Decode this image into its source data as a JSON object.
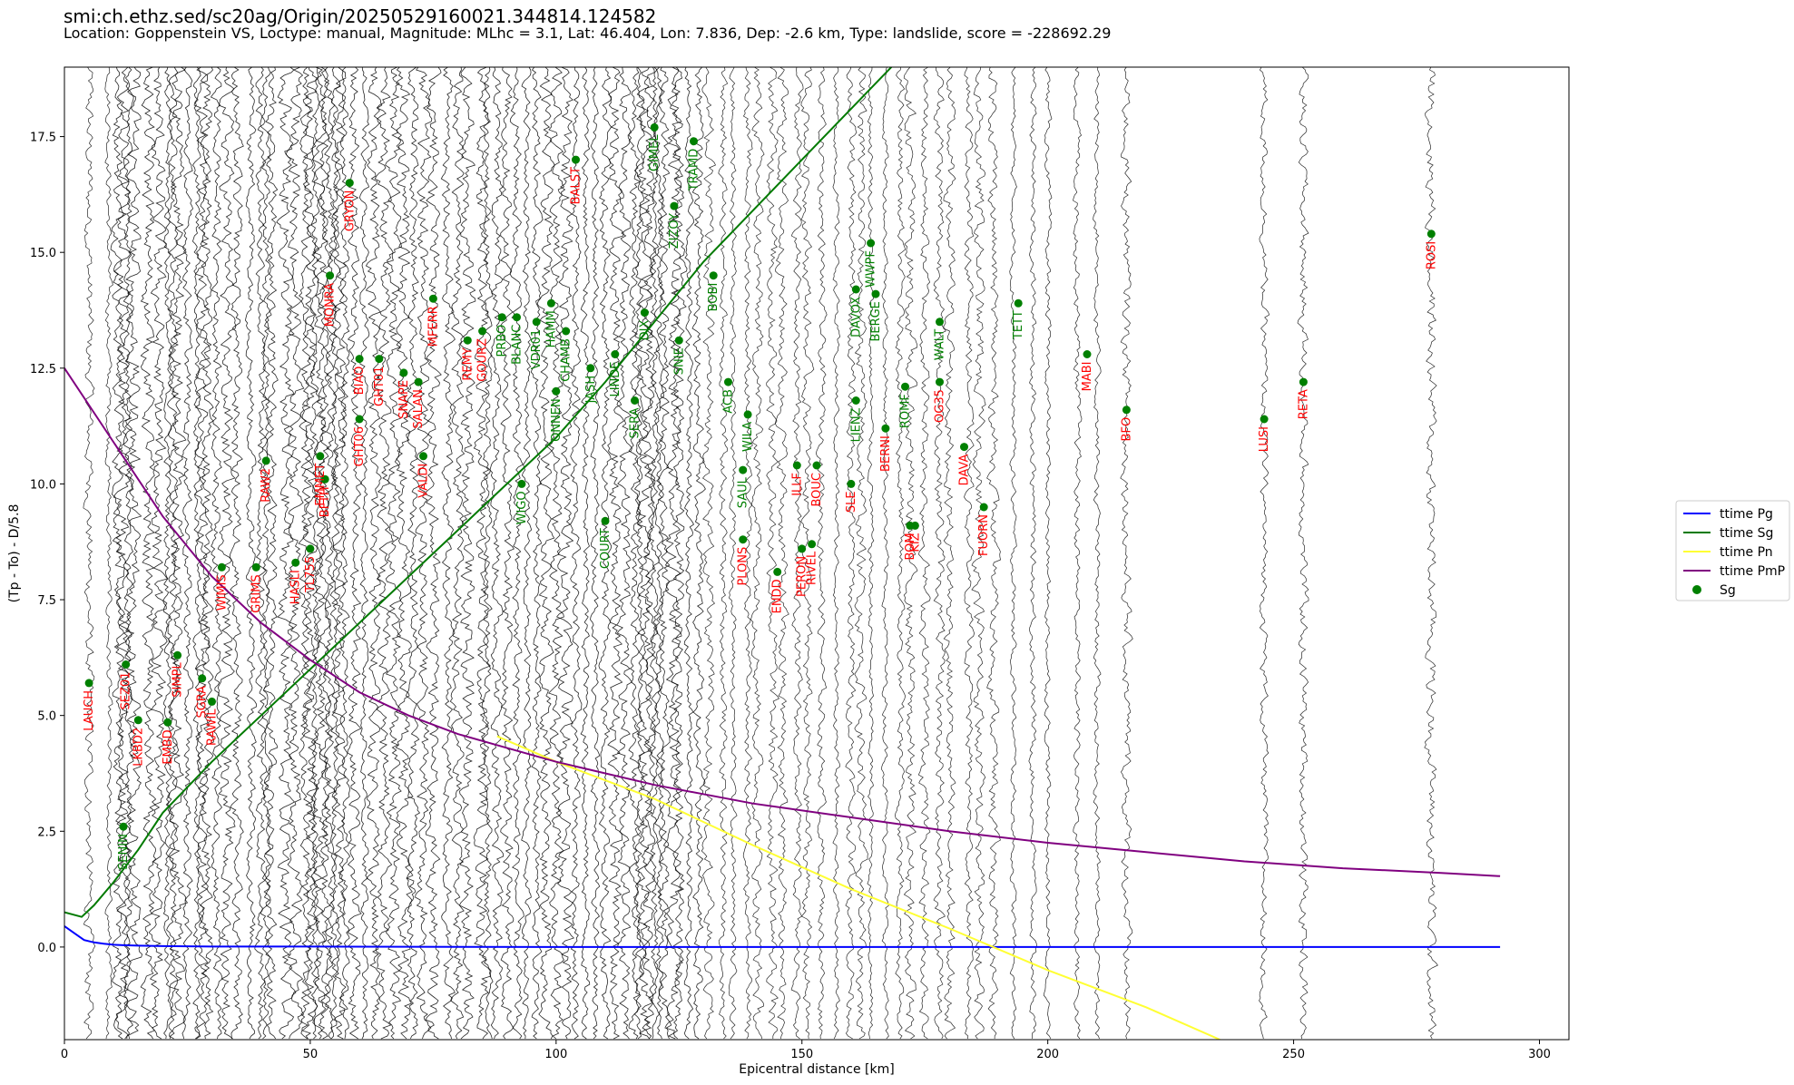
{
  "header": {
    "title": "smi:ch.ethz.sed/sc20ag/Origin/20250529160021.344814.124582",
    "subtitle": "Location: Goppenstein VS, Loctype: manual, Magnitude: MLhc = 3.1, Lat: 46.404, Lon: 7.836, Dep: -2.6 km, Type: landslide, score = -228692.29"
  },
  "chart_data": {
    "type": "line",
    "xlabel": "Epicentral distance [km]",
    "ylabel": "(Tp - To) - D/5.8",
    "xlim": [
      0,
      306
    ],
    "ylim": [
      -2,
      19
    ],
    "x_ticks": [
      0,
      50,
      100,
      150,
      200,
      250,
      300
    ],
    "y_ticks": [
      0.0,
      2.5,
      5.0,
      7.5,
      10.0,
      12.5,
      15.0,
      17.5
    ],
    "grid": false,
    "legend_position": "outside-right",
    "colors": {
      "pg": "#0000ff",
      "sg": "#007a00",
      "pn": "#ffff33",
      "pmp": "#800080",
      "sg_point": "#008000",
      "label_red": "#ff0000",
      "label_green": "#008000",
      "trace": "#000000"
    },
    "series": [
      {
        "name": "ttime Pg",
        "color": "#0000ff",
        "x": [
          0,
          2,
          4,
          6,
          8,
          10,
          12,
          15,
          20,
          30,
          50,
          100,
          150,
          200,
          250,
          292
        ],
        "y": [
          0.45,
          0.3,
          0.15,
          0.1,
          0.07,
          0.05,
          0.04,
          0.03,
          0.02,
          0.01,
          0.01,
          0.0,
          0.0,
          0.0,
          0.0,
          0.0
        ]
      },
      {
        "name": "ttime Sg",
        "color": "#007a00",
        "x": [
          0,
          3.5,
          6,
          10,
          15,
          20,
          30,
          40,
          50,
          60,
          70,
          80,
          90,
          100,
          110,
          120,
          130,
          140,
          150,
          160,
          170,
          175
        ],
        "y": [
          0.75,
          0.65,
          0.9,
          1.4,
          2.1,
          2.9,
          4.0,
          5.0,
          6.0,
          7.0,
          8.0,
          9.0,
          10.0,
          11.0,
          12.2,
          13.5,
          14.8,
          15.9,
          17.0,
          18.1,
          19.2,
          19.7
        ]
      },
      {
        "name": "ttime Pn",
        "color": "#ffff33",
        "x": [
          88,
          100,
          120,
          140,
          160,
          180,
          200,
          220,
          235
        ],
        "y": [
          4.55,
          4.0,
          3.2,
          2.2,
          1.25,
          0.4,
          -0.5,
          -1.3,
          -2.0
        ]
      },
      {
        "name": "ttime PmP",
        "color": "#800080",
        "x": [
          0,
          10,
          20,
          30,
          40,
          50,
          60,
          70,
          80,
          90,
          100,
          120,
          140,
          160,
          180,
          200,
          220,
          240,
          260,
          280,
          292
        ],
        "y": [
          12.5,
          10.9,
          9.3,
          8.0,
          7.0,
          6.2,
          5.5,
          5.0,
          4.6,
          4.3,
          4.0,
          3.5,
          3.1,
          2.8,
          2.5,
          2.25,
          2.05,
          1.85,
          1.7,
          1.6,
          1.53
        ]
      }
    ],
    "points_series": {
      "name": "Sg",
      "color": "#008000"
    },
    "stations": [
      {
        "name": "LAUCH",
        "x": 5,
        "y": 5.7,
        "color": "#ff0000"
      },
      {
        "name": "SENIN",
        "x": 12,
        "y": 2.6,
        "color": "#008000"
      },
      {
        "name": "SEZ01",
        "x": 12.5,
        "y": 6.1,
        "color": "#ff0000"
      },
      {
        "name": "LKBD2",
        "x": 15,
        "y": 4.9,
        "color": "#ff0000"
      },
      {
        "name": "EMBD",
        "x": 21,
        "y": 4.85,
        "color": "#ff0000"
      },
      {
        "name": "SIMPL",
        "x": 23,
        "y": 6.3,
        "color": "#ff0000"
      },
      {
        "name": "SGRA",
        "x": 28,
        "y": 5.8,
        "color": "#ff0000"
      },
      {
        "name": "RAWIL",
        "x": 30,
        "y": 5.3,
        "color": "#ff0000"
      },
      {
        "name": "WIMIS",
        "x": 32,
        "y": 8.2,
        "color": "#ff0000"
      },
      {
        "name": "GRIMS",
        "x": 39,
        "y": 8.2,
        "color": "#ff0000"
      },
      {
        "name": "RAW2",
        "x": 41,
        "y": 10.5,
        "color": "#ff0000"
      },
      {
        "name": "HASLI",
        "x": 47,
        "y": 8.3,
        "color": "#ff0000"
      },
      {
        "name": "TL755",
        "x": 50,
        "y": 8.6,
        "color": "#ff0000"
      },
      {
        "name": "EMMET",
        "x": 52,
        "y": 10.6,
        "color": "#ff0000"
      },
      {
        "name": "BFTH",
        "x": 53,
        "y": 10.1,
        "color": "#ff0000"
      },
      {
        "name": "MONRA",
        "x": 54,
        "y": 14.5,
        "color": "#ff0000"
      },
      {
        "name": "GRYON",
        "x": 58,
        "y": 16.5,
        "color": "#ff0000"
      },
      {
        "name": "BIAO",
        "x": 60,
        "y": 12.7,
        "color": "#ff0000"
      },
      {
        "name": "GHT06",
        "x": 60,
        "y": 11.4,
        "color": "#ff0000"
      },
      {
        "name": "GHT01",
        "x": 64,
        "y": 12.7,
        "color": "#ff0000"
      },
      {
        "name": "SNAPE",
        "x": 69,
        "y": 12.4,
        "color": "#ff0000"
      },
      {
        "name": "SALAN",
        "x": 72,
        "y": 12.2,
        "color": "#ff0000"
      },
      {
        "name": "VALDI",
        "x": 73,
        "y": 10.6,
        "color": "#ff0000"
      },
      {
        "name": "MFERR",
        "x": 75,
        "y": 14.0,
        "color": "#ff0000"
      },
      {
        "name": "REMY",
        "x": 82,
        "y": 13.1,
        "color": "#ff0000"
      },
      {
        "name": "GOURZ",
        "x": 85,
        "y": 13.3,
        "color": "#ff0000"
      },
      {
        "name": "PRBO",
        "x": 89,
        "y": 13.6,
        "color": "#008000"
      },
      {
        "name": "BLANC",
        "x": 92,
        "y": 13.6,
        "color": "#008000"
      },
      {
        "name": "WIGO",
        "x": 93,
        "y": 10.0,
        "color": "#008000"
      },
      {
        "name": "VDR01",
        "x": 96,
        "y": 13.5,
        "color": "#008000"
      },
      {
        "name": "HAMM",
        "x": 99,
        "y": 13.9,
        "color": "#008000"
      },
      {
        "name": "ONNEN",
        "x": 100,
        "y": 12.0,
        "color": "#008000"
      },
      {
        "name": "CHAMB",
        "x": 102,
        "y": 13.3,
        "color": "#008000"
      },
      {
        "name": "BALST",
        "x": 104,
        "y": 17.0,
        "color": "#ff0000"
      },
      {
        "name": "JASH",
        "x": 107,
        "y": 12.5,
        "color": "#008000"
      },
      {
        "name": "COURT",
        "x": 110,
        "y": 9.2,
        "color": "#008000"
      },
      {
        "name": "LINDE",
        "x": 112,
        "y": 12.8,
        "color": "#008000"
      },
      {
        "name": "SERA",
        "x": 116,
        "y": 11.8,
        "color": "#008000"
      },
      {
        "name": "DIX",
        "x": 118,
        "y": 13.7,
        "color": "#008000"
      },
      {
        "name": "GIMEL",
        "x": 120,
        "y": 17.7,
        "color": "#008000"
      },
      {
        "name": "ZIZOY",
        "x": 124,
        "y": 16.0,
        "color": "#008000"
      },
      {
        "name": "SNIE",
        "x": 125,
        "y": 13.1,
        "color": "#008000"
      },
      {
        "name": "TRAMD",
        "x": 128,
        "y": 17.4,
        "color": "#008000"
      },
      {
        "name": "BOBI",
        "x": 132,
        "y": 14.5,
        "color": "#008000"
      },
      {
        "name": "ACB",
        "x": 135,
        "y": 12.2,
        "color": "#008000"
      },
      {
        "name": "SAUL",
        "x": 138,
        "y": 10.3,
        "color": "#008000"
      },
      {
        "name": "WILA",
        "x": 139,
        "y": 11.5,
        "color": "#008000"
      },
      {
        "name": "PLONS",
        "x": 138,
        "y": 8.8,
        "color": "#ff0000"
      },
      {
        "name": "ENDD",
        "x": 145,
        "y": 8.1,
        "color": "#ff0000"
      },
      {
        "name": "ILLF",
        "x": 149,
        "y": 10.4,
        "color": "#ff0000"
      },
      {
        "name": "PERON",
        "x": 150,
        "y": 8.6,
        "color": "#ff0000"
      },
      {
        "name": "RIVEL",
        "x": 152,
        "y": 8.7,
        "color": "#ff0000"
      },
      {
        "name": "BOUC",
        "x": 153,
        "y": 10.4,
        "color": "#ff0000"
      },
      {
        "name": "SLE",
        "x": 160,
        "y": 10.0,
        "color": "#ff0000"
      },
      {
        "name": "LIENZ",
        "x": 161,
        "y": 11.8,
        "color": "#008000"
      },
      {
        "name": "DAVOX",
        "x": 161,
        "y": 14.2,
        "color": "#008000"
      },
      {
        "name": "BERGE",
        "x": 165,
        "y": 14.1,
        "color": "#008000"
      },
      {
        "name": "WWPF",
        "x": 164,
        "y": 15.2,
        "color": "#008000"
      },
      {
        "name": "BERNI",
        "x": 167,
        "y": 11.2,
        "color": "#ff0000"
      },
      {
        "name": "ROMF",
        "x": 171,
        "y": 12.1,
        "color": "#008000"
      },
      {
        "name": "BOM",
        "x": 172,
        "y": 9.1,
        "color": "#ff0000"
      },
      {
        "name": "KIZ",
        "x": 173,
        "y": 9.1,
        "color": "#ff0000"
      },
      {
        "name": "OG35",
        "x": 178,
        "y": 12.2,
        "color": "#ff0000"
      },
      {
        "name": "WALT",
        "x": 178,
        "y": 13.5,
        "color": "#008000"
      },
      {
        "name": "DAVA",
        "x": 183,
        "y": 10.8,
        "color": "#ff0000"
      },
      {
        "name": "FUORN",
        "x": 187,
        "y": 9.5,
        "color": "#ff0000"
      },
      {
        "name": "TETT",
        "x": 194,
        "y": 13.9,
        "color": "#008000"
      },
      {
        "name": "MABI",
        "x": 208,
        "y": 12.8,
        "color": "#ff0000"
      },
      {
        "name": "BFO",
        "x": 216,
        "y": 11.6,
        "color": "#ff0000"
      },
      {
        "name": "LUSI",
        "x": 244,
        "y": 11.4,
        "color": "#ff0000"
      },
      {
        "name": "RETA",
        "x": 252,
        "y": 12.2,
        "color": "#ff0000"
      },
      {
        "name": "ROSI",
        "x": 278,
        "y": 15.4,
        "color": "#ff0000"
      }
    ],
    "trace_x": [
      5,
      9,
      11,
      12,
      13,
      14,
      17,
      19,
      21,
      22,
      23,
      25,
      27,
      28,
      29,
      31,
      33,
      35,
      38,
      40,
      41,
      42,
      45,
      47,
      49,
      50,
      51,
      52,
      53,
      54,
      55,
      56,
      57,
      59,
      61,
      63,
      65,
      67,
      69,
      71,
      73,
      75,
      78,
      80,
      82,
      85,
      86,
      88,
      90,
      92,
      94,
      96,
      98,
      100,
      102,
      104,
      106,
      108,
      110,
      112,
      114,
      116,
      117,
      118,
      119,
      120,
      121,
      122,
      124,
      125,
      127,
      129,
      131,
      134,
      136,
      139,
      141,
      144,
      146,
      149,
      151,
      154,
      157,
      160,
      162,
      164,
      167,
      170,
      172,
      175,
      178,
      180,
      184,
      186,
      189,
      193,
      197,
      200,
      206,
      210,
      216,
      244,
      252,
      278
    ]
  },
  "legend": {
    "items": [
      {
        "label": "ttime Pg",
        "kind": "line",
        "color": "#0000ff"
      },
      {
        "label": "ttime Sg",
        "kind": "line",
        "color": "#007a00"
      },
      {
        "label": "ttime Pn",
        "kind": "line",
        "color": "#ffff33"
      },
      {
        "label": "ttime PmP",
        "kind": "line",
        "color": "#800080"
      },
      {
        "label": "Sg",
        "kind": "point",
        "color": "#008000"
      }
    ]
  }
}
